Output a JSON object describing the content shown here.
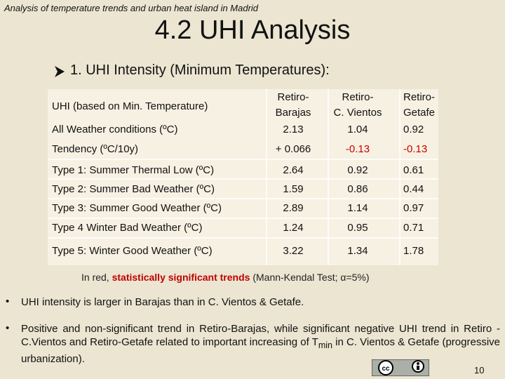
{
  "header": "Analysis of temperature trends and urban heat island in Madrid",
  "title": "4.2 UHI Analysis",
  "subtitle": "1. UHI Intensity (Minimum Temperatures):",
  "table": {
    "columns": [
      "UHI (based on Min. Temperature)",
      "Retiro-\nBarajas",
      "Retiro-\nC. Vientos",
      "Retiro-\nGetafe"
    ],
    "rows": [
      [
        "All Weather conditions (ºC)",
        "2.13",
        "1.04",
        "0.92"
      ],
      [
        "Tendency (ºC/10y)",
        "+ 0.066",
        "-0.13",
        "-0.13"
      ],
      [
        "Type 1: Summer Thermal Low (ºC)",
        "2.64",
        "0.92",
        "0.61"
      ],
      [
        "Type 2: Summer Bad Weather (ºC)",
        "1.59",
        "0.86",
        "0.44"
      ],
      [
        "Type 3: Summer Good Weather (ºC)",
        "2.89",
        "1.14",
        "0.97"
      ],
      [
        "Type 4 Winter Bad Weather (ºC)",
        "1.24",
        "0.95",
        "0.71"
      ],
      [
        "Type 5: Winter Good Weather (ºC)",
        "3.22",
        "1.34",
        "1.78"
      ]
    ]
  },
  "note": {
    "prefix": "In red, ",
    "highlight": "statistically significant trends",
    "middle": " (Mann-Kendal Test; ",
    "alpha": "α=5%",
    "suffix": ")"
  },
  "bullets": [
    {
      "text": "UHI intensity is larger in Barajas than in C. Vientos & Getafe."
    },
    {
      "text": "Positive and non-significant trend in Retiro-Barajas, while significant negative UHI trend in Retiro -C.Vientos and Retiro-Getafe related to important increasing of T",
      "subscript": "min",
      "suffix": " in C. Vientos & Getafe (progressive urbanization)."
    }
  ],
  "page_number": "10"
}
